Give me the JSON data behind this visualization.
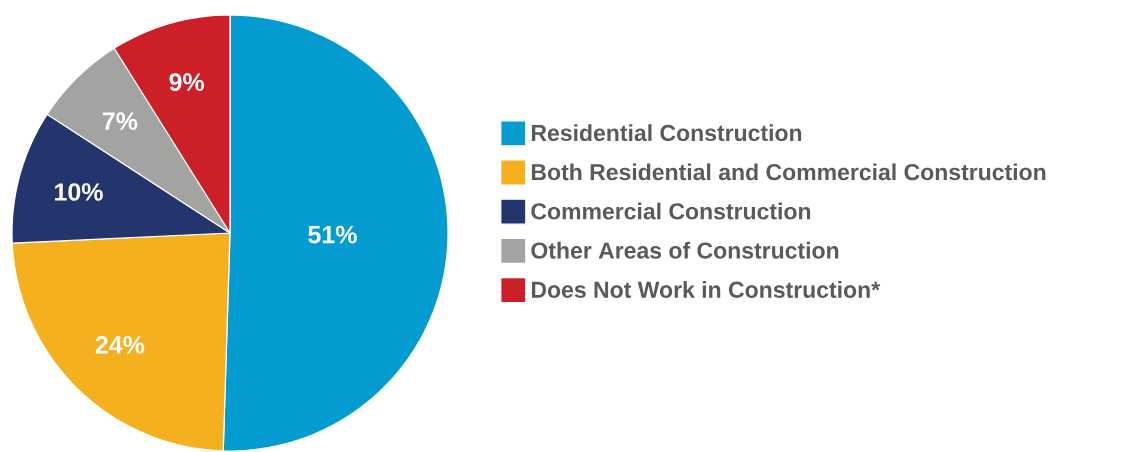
{
  "chart_data": {
    "type": "pie",
    "categories": [
      "Residential Construction",
      "Both Residential and Commercial Construction",
      "Commercial Construction",
      "Other Areas of Construction",
      "Does Not Work in Construction*"
    ],
    "values": [
      51,
      24,
      10,
      7,
      9
    ],
    "value_labels": [
      "51%",
      "24%",
      "10%",
      "7%",
      "9%"
    ],
    "colors": [
      "#049bd1",
      "#f5b01f",
      "#24346c",
      "#a3a3a2",
      "#cc1f27"
    ],
    "legend": "right"
  }
}
